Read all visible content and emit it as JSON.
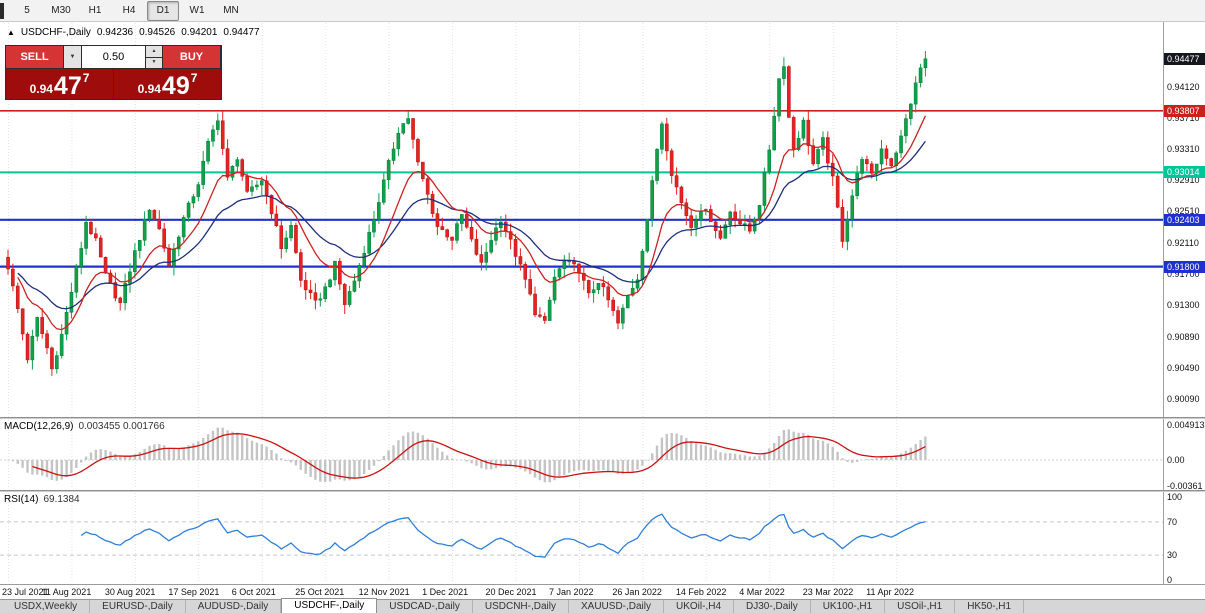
{
  "toolbar": {
    "timeframes": [
      {
        "label": "5",
        "selected": false
      },
      {
        "label": "M30",
        "selected": false
      },
      {
        "label": "H1",
        "selected": false
      },
      {
        "label": "H4",
        "selected": false
      },
      {
        "label": "D1",
        "selected": true
      },
      {
        "label": "W1",
        "selected": false
      },
      {
        "label": "MN",
        "selected": false
      }
    ]
  },
  "chart_header": {
    "icon": "▲",
    "symbol": "USDCHF-,Daily",
    "open": "0.94236",
    "high": "0.94526",
    "low": "0.94201",
    "close": "0.94477"
  },
  "trade_panel": {
    "sell_label": "SELL",
    "buy_label": "BUY",
    "lot_value": "0.50",
    "dropdown_icon": "▼",
    "spin_up_icon": "▲",
    "spin_down_icon": "▼",
    "sell_price": {
      "prefix": "0.94",
      "big": "47",
      "sup": "7"
    },
    "buy_price": {
      "prefix": "0.94",
      "big": "49",
      "sup": "7"
    }
  },
  "price_axis": {
    "current": {
      "label": "0.94477",
      "value": 0.94477,
      "color": "#15171f"
    },
    "labels": [
      "0.94120",
      "0.93710",
      "0.93310",
      "0.92910",
      "0.92510",
      "0.92110",
      "0.91700",
      "0.91300",
      "0.90890",
      "0.90490",
      "0.90090"
    ]
  },
  "levels": [
    {
      "label": "0.93807",
      "value": 0.93807,
      "color": "#cc2020",
      "width": 1.6
    },
    {
      "label": "0.93014",
      "value": 0.93014,
      "color": "#00c49a",
      "width": 2
    },
    {
      "label": "0.92403",
      "value": 0.92403,
      "color": "#2030cc",
      "width": 2.2
    },
    {
      "label": "0.91800",
      "value": 0.918,
      "color": "#2030cc",
      "width": 2.2
    }
  ],
  "macd_panel": {
    "name": "MACD(12,26,9)",
    "values": "0.003455 0.001766",
    "axis": [
      "0.004913",
      "0.00",
      "-0.00361"
    ]
  },
  "rsi_panel": {
    "name": "RSI(14)",
    "value": "69.1384",
    "axis": [
      "100",
      "70",
      "30",
      "0"
    ]
  },
  "x_axis": {
    "dates": [
      "23 Jul 2021",
      "11 Aug 2021",
      "30 Aug 2021",
      "17 Sep 2021",
      "6 Oct 2021",
      "25 Oct 2021",
      "12 Nov 2021",
      "1 Dec 2021",
      "20 Dec 2021",
      "7 Jan 2022",
      "26 Jan 2022",
      "14 Feb 2022",
      "4 Mar 2022",
      "23 Mar 2022",
      "11 Apr 2022"
    ]
  },
  "tabs": [
    {
      "label": "USDX,Weekly",
      "active": false
    },
    {
      "label": "EURUSD-,Daily",
      "active": false
    },
    {
      "label": "AUDUSD-,Daily",
      "active": false
    },
    {
      "label": "USDCHF-,Daily",
      "active": true
    },
    {
      "label": "USDCAD-,Daily",
      "active": false
    },
    {
      "label": "USDCNH-,Daily",
      "active": false
    },
    {
      "label": "XAUUSD-,Daily",
      "active": false
    },
    {
      "label": "UKOil-,H4",
      "active": false
    },
    {
      "label": "DJ30-,Daily",
      "active": false
    },
    {
      "label": "UK100-,H1",
      "active": false
    },
    {
      "label": "USOil-,H1",
      "active": false
    },
    {
      "label": "HK50-,H1",
      "active": false
    }
  ],
  "chart_data": {
    "type": "candlestick",
    "symbol": "USDCHF-",
    "timeframe": "Daily",
    "title": "USDCHF-,Daily",
    "ohlc_current": {
      "open": 0.94236,
      "high": 0.94526,
      "low": 0.94201,
      "close": 0.94477
    },
    "bid": 0.94477,
    "ask": 0.94497,
    "days": 189,
    "price_range": [
      0.899,
      0.949
    ],
    "tick_days": [
      0,
      13,
      26,
      39,
      52,
      65,
      78,
      91,
      104,
      117,
      130,
      143,
      156,
      169,
      182
    ],
    "anchors": [
      [
        0,
        0.918
      ],
      [
        2,
        0.9125
      ],
      [
        4,
        0.9062
      ],
      [
        6,
        0.9112
      ],
      [
        8,
        0.9075
      ],
      [
        9,
        0.9048
      ],
      [
        11,
        0.9092
      ],
      [
        13,
        0.9148
      ],
      [
        15,
        0.9205
      ],
      [
        16,
        0.9238
      ],
      [
        18,
        0.9212
      ],
      [
        20,
        0.9168
      ],
      [
        23,
        0.9132
      ],
      [
        26,
        0.9198
      ],
      [
        29,
        0.9256
      ],
      [
        31,
        0.9228
      ],
      [
        33,
        0.9182
      ],
      [
        36,
        0.9242
      ],
      [
        39,
        0.9288
      ],
      [
        41,
        0.9338
      ],
      [
        43,
        0.9372
      ],
      [
        45,
        0.9292
      ],
      [
        47,
        0.9322
      ],
      [
        49,
        0.9272
      ],
      [
        52,
        0.9292
      ],
      [
        54,
        0.9252
      ],
      [
        56,
        0.9205
      ],
      [
        58,
        0.9232
      ],
      [
        60,
        0.9162
      ],
      [
        63,
        0.9132
      ],
      [
        65,
        0.9152
      ],
      [
        67,
        0.9182
      ],
      [
        69,
        0.9132
      ],
      [
        71,
        0.9162
      ],
      [
        73,
        0.9202
      ],
      [
        75,
        0.9242
      ],
      [
        78,
        0.9312
      ],
      [
        80,
        0.9356
      ],
      [
        82,
        0.9372
      ],
      [
        84,
        0.9312
      ],
      [
        86,
        0.9272
      ],
      [
        88,
        0.9232
      ],
      [
        91,
        0.9216
      ],
      [
        93,
        0.9246
      ],
      [
        95,
        0.9212
      ],
      [
        97,
        0.9182
      ],
      [
        99,
        0.9216
      ],
      [
        101,
        0.9242
      ],
      [
        104,
        0.9196
      ],
      [
        106,
        0.9162
      ],
      [
        108,
        0.9122
      ],
      [
        110,
        0.9106
      ],
      [
        112,
        0.9166
      ],
      [
        114,
        0.9186
      ],
      [
        117,
        0.9176
      ],
      [
        119,
        0.9142
      ],
      [
        121,
        0.9162
      ],
      [
        123,
        0.9136
      ],
      [
        125,
        0.9106
      ],
      [
        127,
        0.9142
      ],
      [
        129,
        0.9166
      ],
      [
        131,
        0.9242
      ],
      [
        133,
        0.9332
      ],
      [
        134,
        0.9366
      ],
      [
        136,
        0.9302
      ],
      [
        138,
        0.9262
      ],
      [
        140,
        0.9232
      ],
      [
        142,
        0.9256
      ],
      [
        144,
        0.9242
      ],
      [
        146,
        0.9216
      ],
      [
        148,
        0.9252
      ],
      [
        150,
        0.9236
      ],
      [
        152,
        0.9226
      ],
      [
        154,
        0.9262
      ],
      [
        156,
        0.9332
      ],
      [
        158,
        0.9422
      ],
      [
        159,
        0.9442
      ],
      [
        160,
        0.9372
      ],
      [
        161,
        0.9332
      ],
      [
        163,
        0.9366
      ],
      [
        165,
        0.9312
      ],
      [
        167,
        0.9342
      ],
      [
        169,
        0.9292
      ],
      [
        171,
        0.9216
      ],
      [
        173,
        0.9272
      ],
      [
        175,
        0.9322
      ],
      [
        177,
        0.9296
      ],
      [
        179,
        0.9332
      ],
      [
        181,
        0.9312
      ],
      [
        183,
        0.9346
      ],
      [
        185,
        0.9392
      ],
      [
        187,
        0.9436
      ],
      [
        188,
        0.9448
      ]
    ],
    "overlays": [
      {
        "type": "ema",
        "period": 12
      },
      {
        "type": "ema",
        "period": 26
      }
    ],
    "indicators": [
      {
        "name": "MACD",
        "params": [
          12,
          26,
          9
        ],
        "current": [
          0.003455,
          0.001766
        ],
        "axis_range": [
          -0.00361,
          0.004913
        ]
      },
      {
        "name": "RSI",
        "params": [
          14
        ],
        "current": 69.1384,
        "levels": [
          30,
          70
        ],
        "axis_range": [
          0,
          100
        ]
      }
    ],
    "style": {
      "up_color": "#0fa04a",
      "up_stroke": "#0a7a38",
      "down_color": "#e62222",
      "down_stroke": "#b01515",
      "ema_fast_color": "#cc2222",
      "ema_slow_color": "#1f2f7a",
      "macd_hist_color": "#c4c4c4",
      "macd_signal_color": "#cc1111",
      "rsi_color": "#2f7ed8",
      "grid_color": "#e2e2e2"
    }
  }
}
